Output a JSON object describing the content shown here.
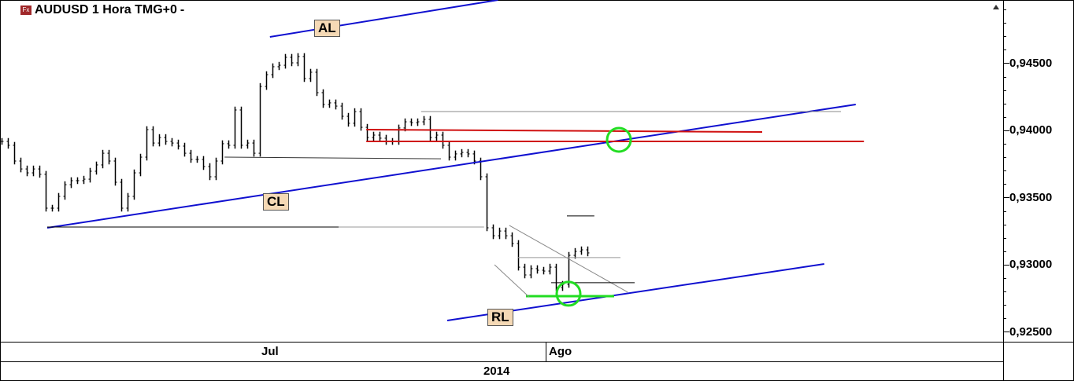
{
  "header": {
    "symbol_title": "AUDUSD 1 Hora TMG+0",
    "dropdown_glyph": "-",
    "icon": "fx-icon"
  },
  "chart_data": {
    "type": "ohlc-bar",
    "instrument": "AUDUSD",
    "timeframe": "1 Hora",
    "timezone": "TMG+0",
    "ylim": [
      0.9243,
      0.9497
    ],
    "y_ticks": [
      0.945,
      0.94,
      0.935,
      0.93,
      0.925
    ],
    "y_tick_labels": [
      "0,94500",
      "0,94000",
      "0,93500",
      "0,93000",
      "0,92500"
    ],
    "x_labels": [
      {
        "label": "Jul",
        "bar": 42.9
      },
      {
        "label": "Ago",
        "bar": 86.4
      }
    ],
    "year_label": "2014",
    "close": [
      0.93918,
      0.93889,
      0.93772,
      0.93713,
      0.93684,
      0.93713,
      0.93673,
      0.93421,
      0.93421,
      0.93509,
      0.93596,
      0.93626,
      0.93626,
      0.93637,
      0.93696,
      0.93743,
      0.9383,
      0.93772,
      0.93614,
      0.93421,
      0.93509,
      0.93684,
      0.93801,
      0.94006,
      0.93906,
      0.93947,
      0.93918,
      0.93906,
      0.93883,
      0.9383,
      0.93784,
      0.93784,
      0.93731,
      0.93655,
      0.93772,
      0.93901,
      0.93889,
      0.94152,
      0.93889,
      0.93906,
      0.9383,
      0.94327,
      0.94415,
      0.94474,
      0.94485,
      0.94544,
      0.94503,
      0.9455,
      0.94386,
      0.94433,
      0.94281,
      0.94193,
      0.94205,
      0.94181,
      0.94105,
      0.94053,
      0.9414,
      0.94023,
      0.93947,
      0.93965,
      0.93942,
      0.93918,
      0.93918,
      0.94018,
      0.94064,
      0.94058,
      0.94064,
      0.94082,
      0.93947,
      0.93965,
      0.93889,
      0.93801,
      0.93825,
      0.93836,
      0.93825,
      0.93772,
      0.93655,
      0.93275,
      0.93216,
      0.93251,
      0.93216,
      0.93158,
      0.92982,
      0.92924,
      0.92971,
      0.92959,
      0.92953,
      0.92982,
      0.9283,
      0.92854,
      0.9307,
      0.93099,
      0.93111,
      0.93088
    ],
    "annotations": {
      "lines": [
        {
          "name": "upper-channel-line",
          "color": "#1010d0",
          "p1": [
            42.6,
            0.94696
          ],
          "p2": [
            78.8,
            0.94971
          ],
          "w": 2
        },
        {
          "name": "cl-trendline",
          "color": "#1010d0",
          "p1": [
            7.25,
            0.93275
          ],
          "p2": [
            135.6,
            0.94193
          ],
          "w": 2
        },
        {
          "name": "rl-trendline",
          "color": "#1010d0",
          "p1": [
            70.75,
            0.92585
          ],
          "p2": [
            130.6,
            0.93006
          ],
          "w": 2
        },
        {
          "name": "low-horizontal",
          "color": "#000000",
          "p1": [
            7.25,
            0.93281
          ],
          "p2": [
            53.5,
            0.93281
          ],
          "w": 1
        },
        {
          "name": "low-horizontal-gray",
          "color": "#999999",
          "p1": [
            53.5,
            0.93281
          ],
          "p2": [
            76.6,
            0.93281
          ],
          "w": 1
        },
        {
          "name": "support-line",
          "color": "#333333",
          "p1": [
            35.4,
            0.93801
          ],
          "p2": [
            69.75,
            0.93789
          ],
          "w": 1
        },
        {
          "name": "high-gray-line",
          "color": "#888888",
          "p1": [
            66.6,
            0.9414
          ],
          "p2": [
            133.25,
            0.9414
          ],
          "w": 1
        },
        {
          "name": "red-resistance-upper",
          "color": "#d01010",
          "p1": [
            57.9,
            0.94006
          ],
          "p2": [
            120.75,
            0.93988
          ],
          "w": 2
        },
        {
          "name": "red-resistance-lower",
          "color": "#d01010",
          "p1": [
            57.9,
            0.93918
          ],
          "p2": [
            136.9,
            0.93918
          ],
          "w": 2
        },
        {
          "name": "green-support",
          "color": "#22dd22",
          "p1": [
            83.25,
            0.92766
          ],
          "p2": [
            97.25,
            0.92766
          ],
          "w": 3
        },
        {
          "name": "wedge-upper",
          "color": "#888888",
          "p1": [
            80.6,
            0.93293
          ],
          "p2": [
            99.4,
            0.92796
          ],
          "w": 1
        },
        {
          "name": "wedge-lower",
          "color": "#888888",
          "p1": [
            78.25,
            0.93
          ],
          "p2": [
            83.75,
            0.9276
          ],
          "w": 1
        },
        {
          "name": "black-horizontal-mid",
          "color": "#000000",
          "p1": [
            87.25,
            0.92866
          ],
          "p2": [
            100.5,
            0.92866
          ],
          "w": 1
        },
        {
          "name": "gray-horizontal-mid",
          "color": "#999999",
          "p1": [
            82,
            0.93053
          ],
          "p2": [
            98.25,
            0.93053
          ],
          "w": 1
        },
        {
          "name": "peak-horizontal",
          "color": "#000000",
          "p1": [
            89.75,
            0.93363
          ],
          "p2": [
            94.1,
            0.93363
          ],
          "w": 1
        }
      ],
      "circles": [
        {
          "name": "green-circle-cross",
          "color": "#22dd22",
          "center": [
            98,
            0.9393
          ]
        },
        {
          "name": "green-circle-low",
          "color": "#22dd22",
          "center": [
            90,
            0.92784
          ]
        }
      ],
      "labels": [
        "AL",
        "CL",
        "RL"
      ]
    }
  }
}
